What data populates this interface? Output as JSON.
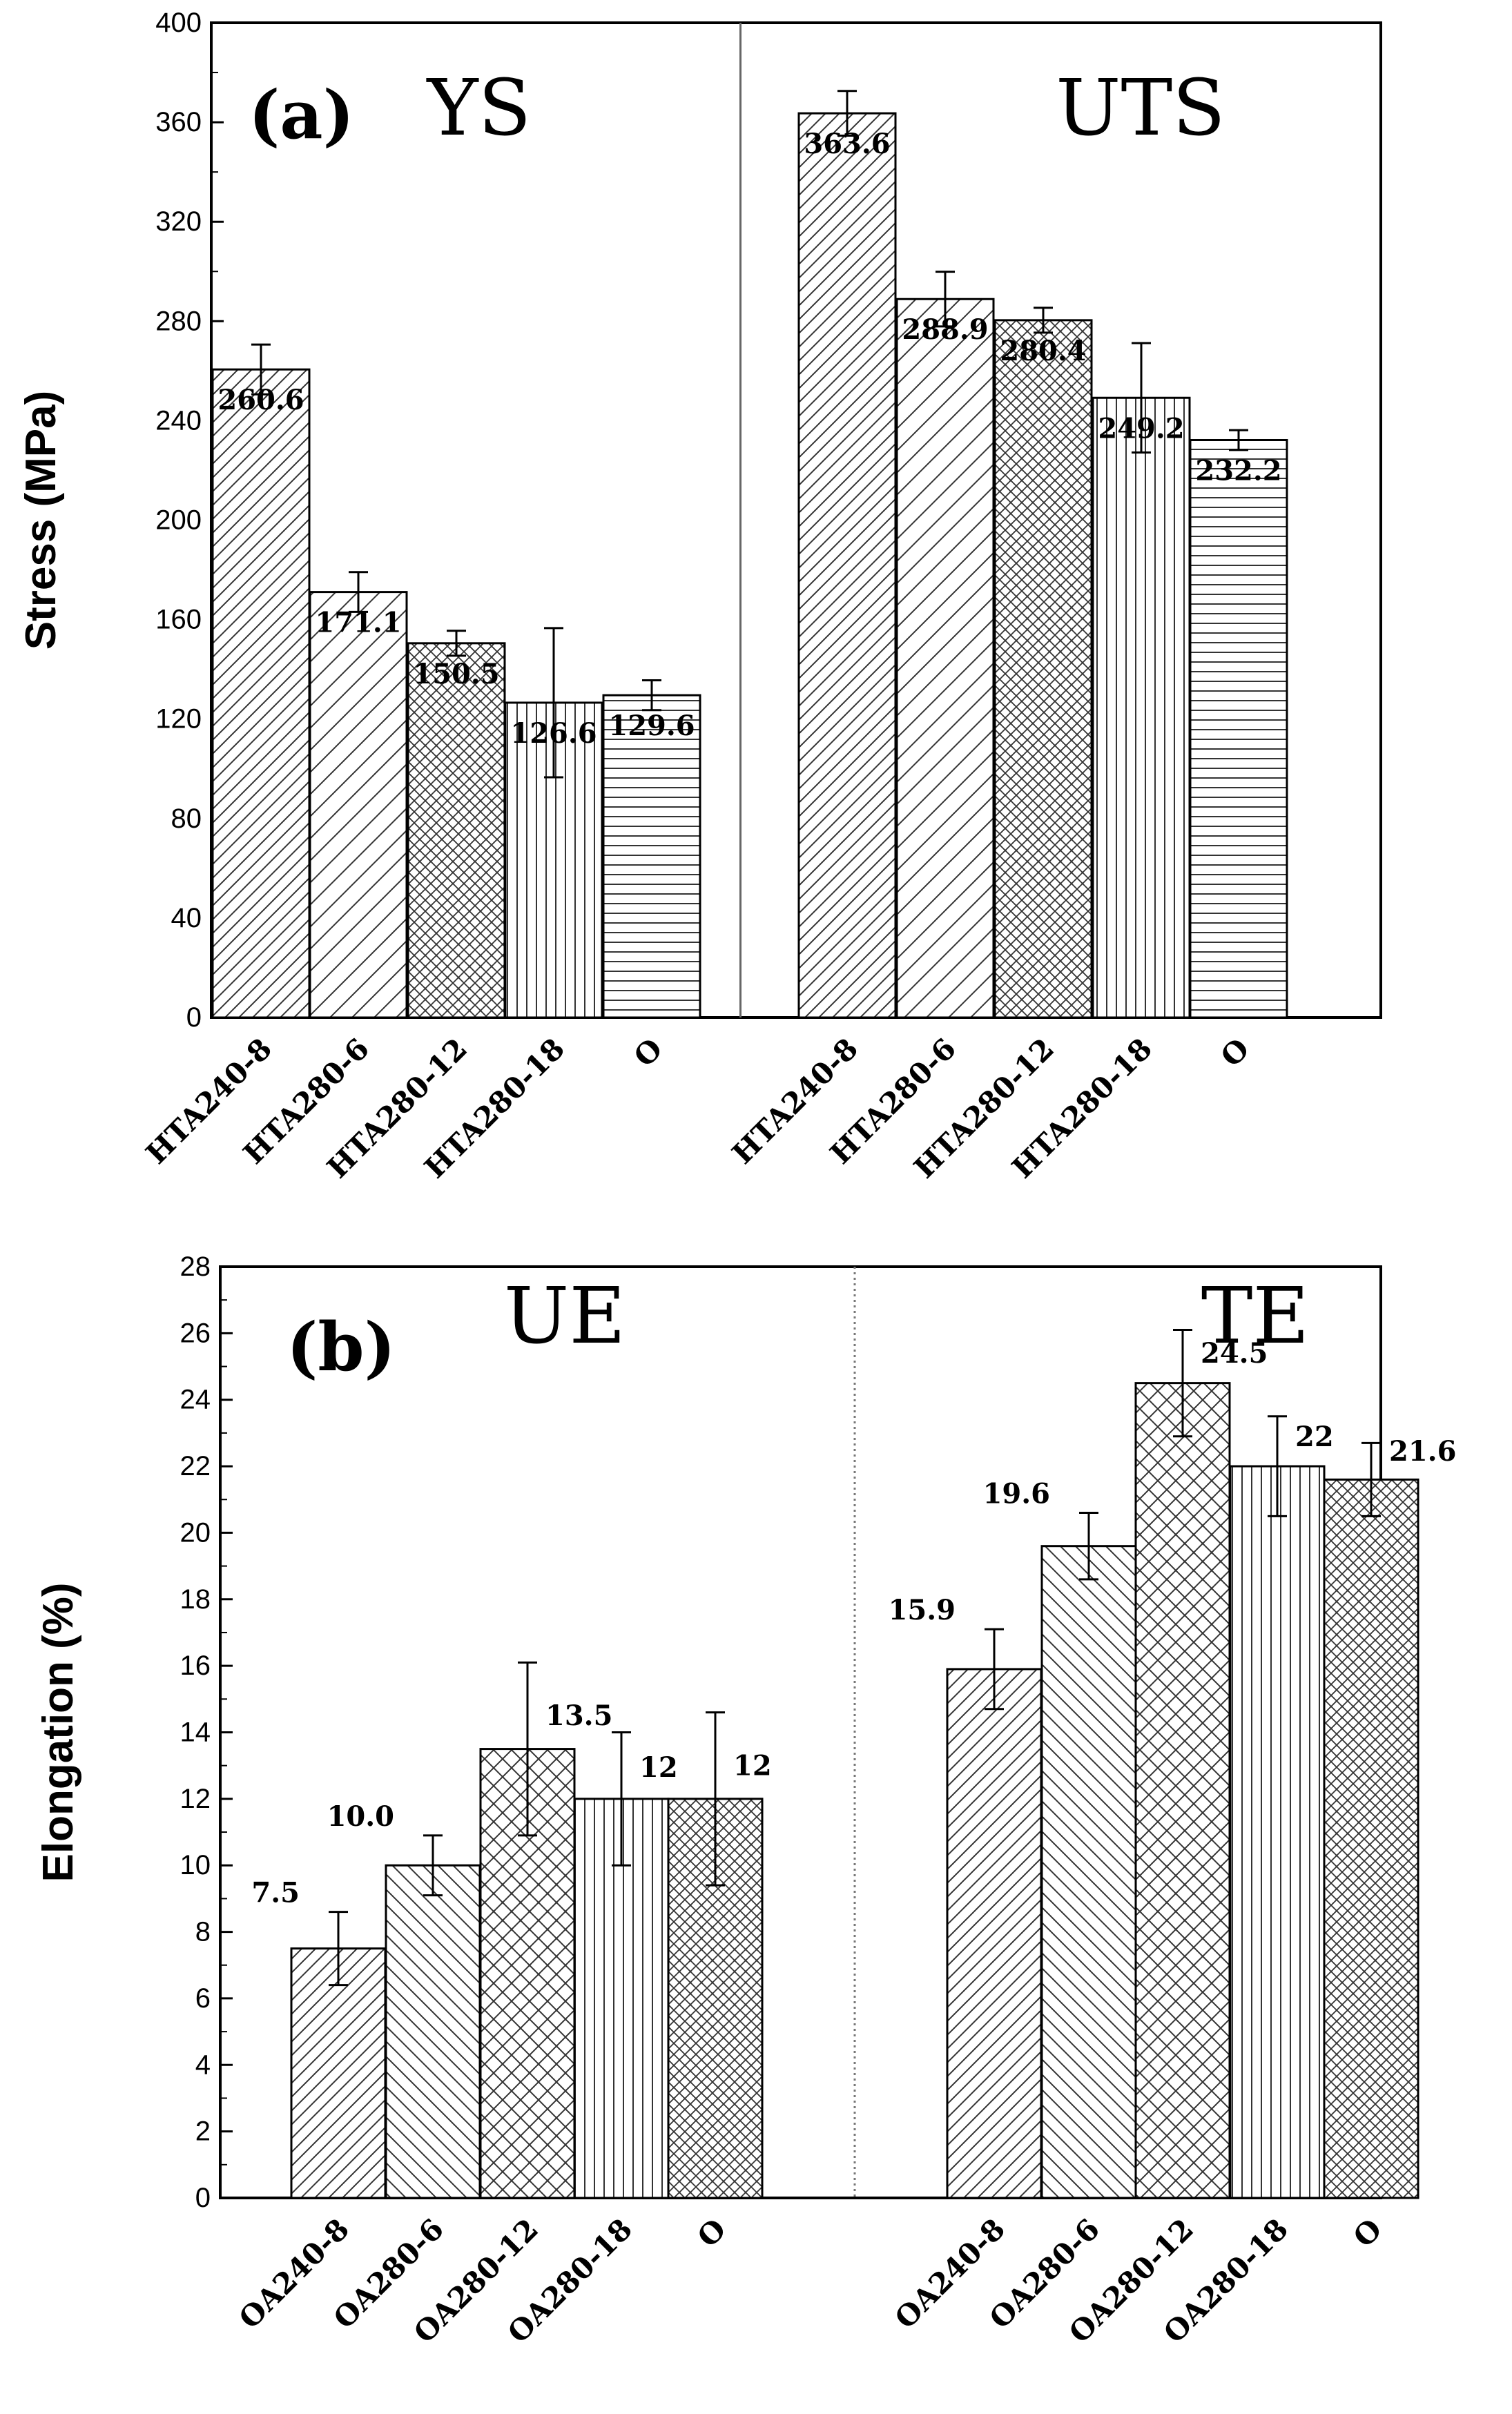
{
  "chart_data": [
    {
      "type": "bar",
      "panel_label": "(a)",
      "ylabel": "Stress (MPa)",
      "ylim": [
        0,
        400
      ],
      "yticks": [
        0,
        40,
        80,
        120,
        160,
        200,
        240,
        280,
        320,
        360,
        400
      ],
      "separator": "solid",
      "groups": [
        {
          "title": "YS",
          "categories": [
            "HTA240-8",
            "HTA280-6",
            "HTA280-12",
            "HTA280-18",
            "O"
          ],
          "values": [
            260.6,
            171.1,
            150.5,
            126.6,
            129.6
          ],
          "value_labels": [
            "260.6",
            "171.1",
            "150.5",
            "126.6",
            "129.6"
          ],
          "errors": [
            10,
            8,
            5,
            30,
            6
          ],
          "patterns": [
            "diag-back",
            "diag-back-wide",
            "cross",
            "vertical",
            "horizontal"
          ]
        },
        {
          "title": "UTS",
          "categories": [
            "HTA240-8",
            "HTA280-6",
            "HTA280-12",
            "HTA280-18",
            "O"
          ],
          "values": [
            363.6,
            288.9,
            280.4,
            249.2,
            232.2
          ],
          "value_labels": [
            "363.6",
            "288.9",
            "280.4",
            "249.2",
            "232.2"
          ],
          "errors": [
            9,
            11,
            5,
            22,
            4
          ],
          "patterns": [
            "diag-back",
            "diag-back-wide",
            "cross",
            "vertical",
            "horizontal"
          ]
        }
      ]
    },
    {
      "type": "bar",
      "panel_label": "(b)",
      "ylabel": "Elongation (%)",
      "ylim": [
        0,
        28
      ],
      "yticks": [
        0,
        2,
        4,
        6,
        8,
        10,
        12,
        14,
        16,
        18,
        20,
        22,
        24,
        26,
        28
      ],
      "separator": "dotted",
      "groups": [
        {
          "title": "UE",
          "categories": [
            "OA240-8",
            "OA280-6",
            "OA280-12",
            "OA280-18",
            "O"
          ],
          "values": [
            7.5,
            10.0,
            13.5,
            12,
            12
          ],
          "value_labels": [
            "7.5",
            "10.0",
            "13.5",
            "12",
            "12"
          ],
          "errors": [
            1.1,
            0.9,
            2.6,
            2.0,
            2.6
          ],
          "patterns": [
            "diag-back",
            "diag-fwd",
            "cross-wide",
            "vertical",
            "cross"
          ]
        },
        {
          "title": "TE",
          "categories": [
            "OA240-8",
            "OA280-6",
            "OA280-12",
            "OA280-18",
            "O"
          ],
          "values": [
            15.9,
            19.6,
            24.5,
            22,
            21.6
          ],
          "value_labels": [
            "15.9",
            "19.6",
            "24.5",
            "22",
            "21.6"
          ],
          "errors": [
            1.2,
            1.0,
            1.6,
            1.5,
            1.1
          ],
          "patterns": [
            "diag-back",
            "diag-fwd",
            "cross-wide",
            "vertical",
            "cross"
          ]
        }
      ]
    }
  ]
}
